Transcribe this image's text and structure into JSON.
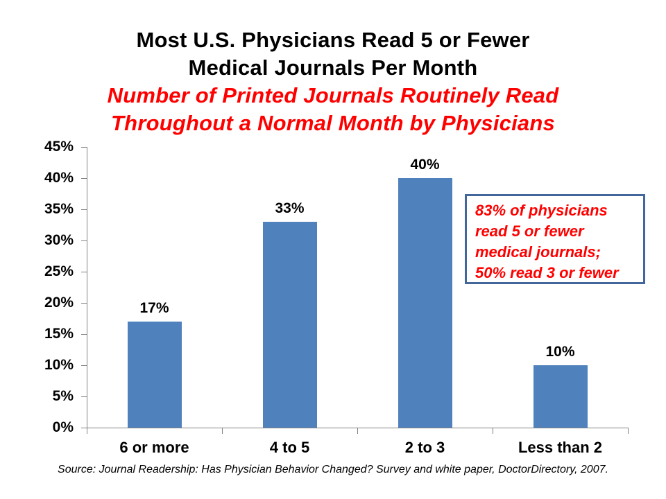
{
  "title": {
    "line1": "Most U.S. Physicians Read 5 or Fewer",
    "line2": "Medical Journals Per Month",
    "subtitle_line1": "Number of Printed Journals Routinely Read",
    "subtitle_line2": "Throughout a Normal Month by Physicians"
  },
  "chart_data": {
    "type": "bar",
    "title": "Most U.S. Physicians Read 5 or Fewer Medical Journals Per Month",
    "subtitle": "Number of Printed Journals Routinely Read Throughout a Normal Month by Physicians",
    "categories": [
      "6 or more",
      "4 to 5",
      "2 to 3",
      "Less than 2"
    ],
    "values": [
      17,
      33,
      40,
      10
    ],
    "data_labels": [
      "17%",
      "33%",
      "40%",
      "10%"
    ],
    "y_tick_labels": [
      "45%",
      "40%",
      "35%",
      "30%",
      "25%",
      "20%",
      "15%",
      "10%",
      "5%",
      "0%"
    ],
    "ylim": [
      0,
      45
    ],
    "y_step": 5,
    "xlabel": "",
    "ylabel": "",
    "grid": false,
    "legend": "none",
    "bar_color": "#4F81BD",
    "axis_color": "#808080",
    "label_color": "#000000"
  },
  "annotation": {
    "text_lines": [
      "83% of physicians",
      "read 5 or fewer",
      "medical journals;",
      "50% read 3 or fewer"
    ],
    "border_color": "#44679B",
    "text_color": "#ff0000"
  },
  "source": "Source: Journal Readership: Has Physician Behavior Changed? Survey and white paper, DoctorDirectory, 2007.",
  "colors": {
    "background": "#ffffff",
    "title_text": "#000000",
    "subtitle_text": "#ff0000"
  }
}
